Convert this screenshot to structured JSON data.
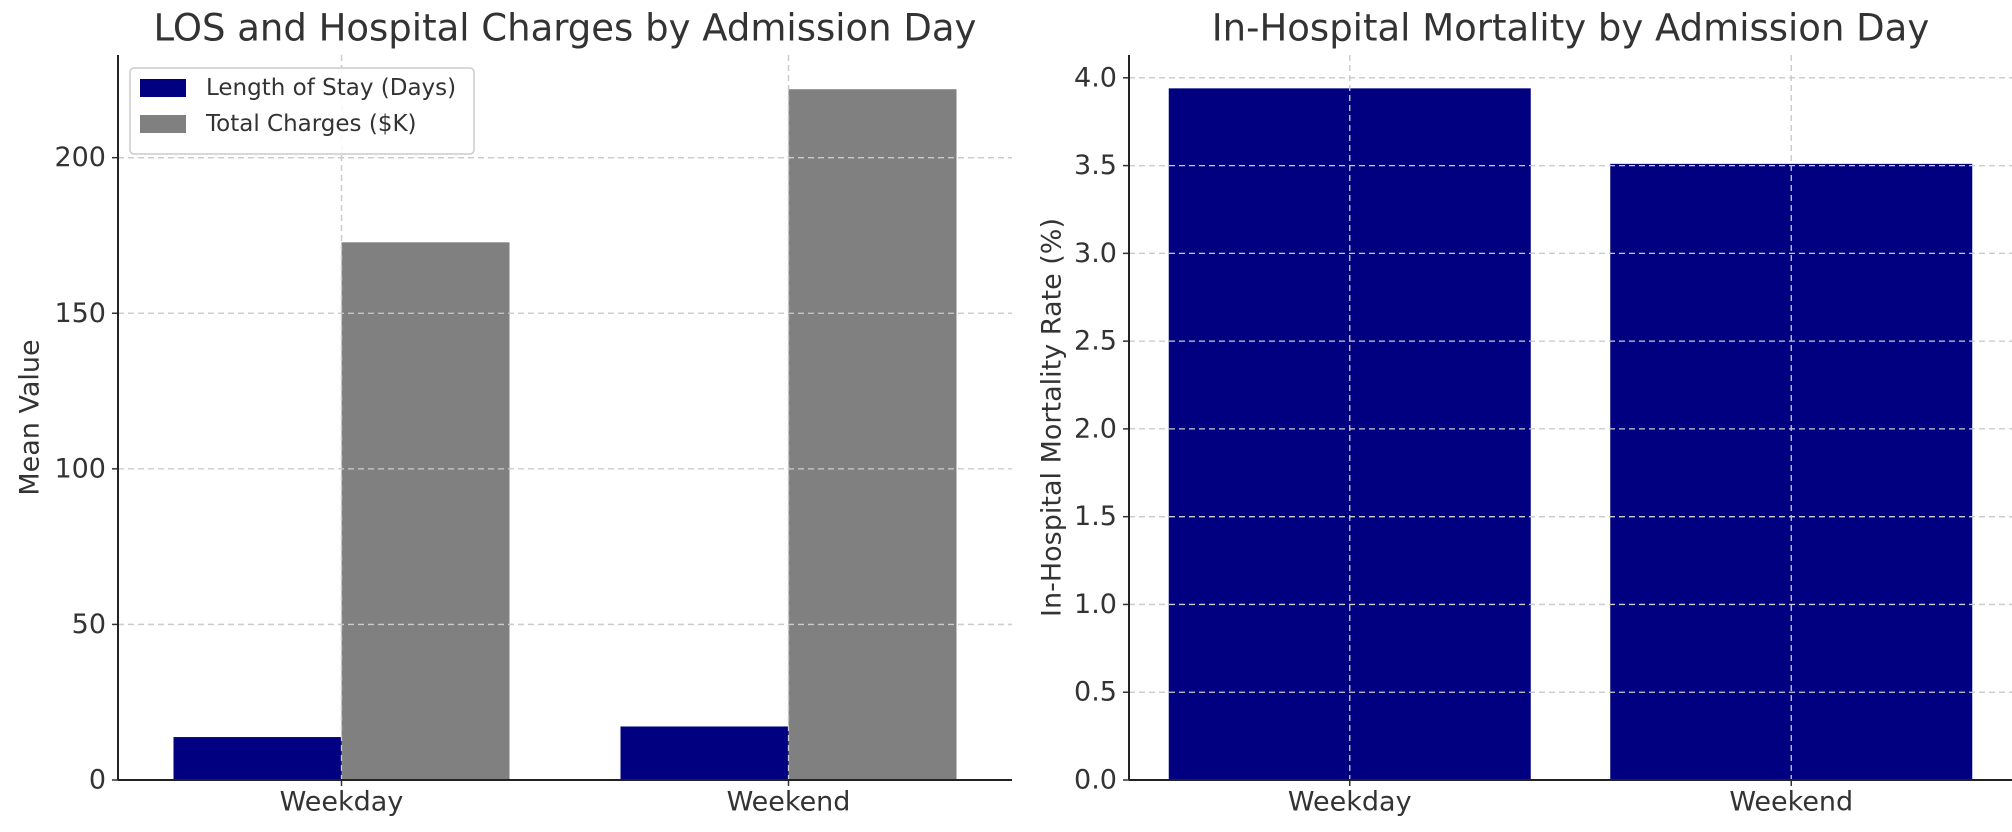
{
  "chart_data": [
    {
      "type": "bar",
      "title": "LOS and Hospital Charges by Admission Day",
      "xlabel": "",
      "ylabel": "Mean Value",
      "categories": [
        "Weekday",
        "Weekend"
      ],
      "series": [
        {
          "name": "Length of Stay (Days)",
          "values": [
            13.8,
            17.2
          ],
          "color": "#000080"
        },
        {
          "name": "Total Charges ($K)",
          "values": [
            172.8,
            222.0
          ],
          "color": "#808080"
        }
      ],
      "ylim": [
        0,
        233
      ],
      "yticks": [
        0,
        50,
        100,
        150,
        200
      ],
      "grid": true,
      "legend": "top-left"
    },
    {
      "type": "bar",
      "title": "In-Hospital Mortality by Admission Day",
      "xlabel": "",
      "ylabel": "In-Hospital Mortality Rate (%)",
      "categories": [
        "Weekday",
        "Weekend"
      ],
      "series": [
        {
          "values": [
            3.94,
            3.51
          ],
          "color": "#000080"
        }
      ],
      "ylim": [
        0,
        4.13
      ],
      "yticks": [
        "0.0",
        "0.5",
        "1.0",
        "1.5",
        "2.0",
        "2.5",
        "3.0",
        "3.5",
        "4.0"
      ],
      "grid": true
    }
  ]
}
